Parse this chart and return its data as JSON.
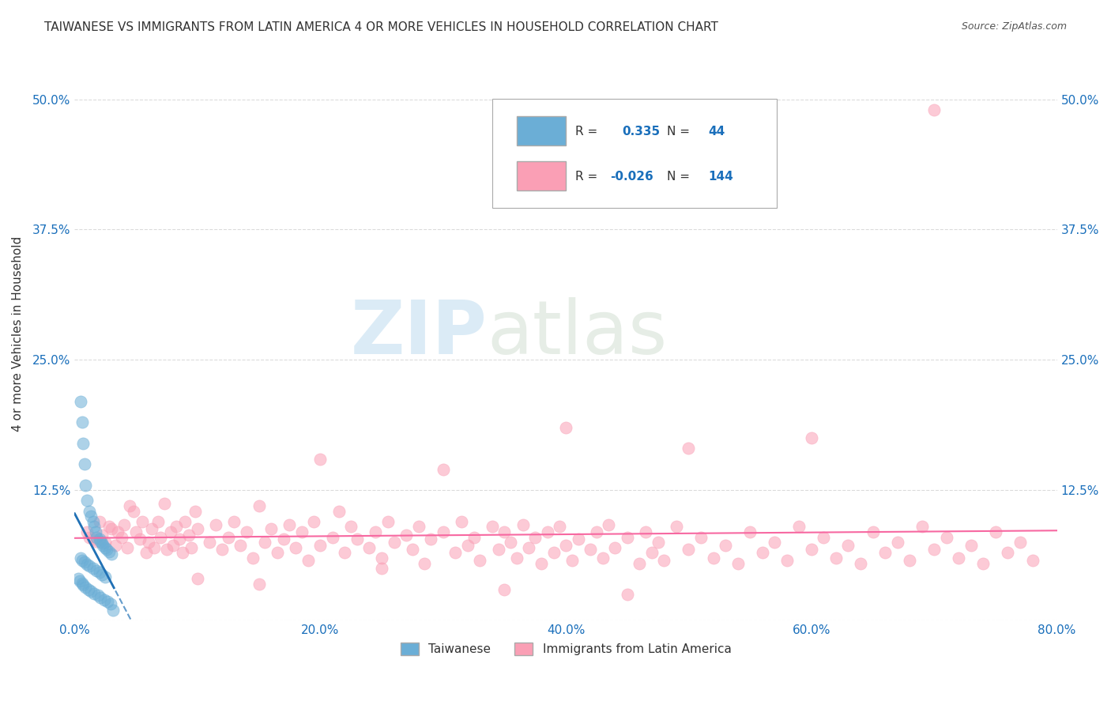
{
  "title": "TAIWANESE VS IMMIGRANTS FROM LATIN AMERICA 4 OR MORE VEHICLES IN HOUSEHOLD CORRELATION CHART",
  "source": "Source: ZipAtlas.com",
  "ylabel_label": "4 or more Vehicles in Household",
  "watermark_zip": "ZIP",
  "watermark_atlas": "atlas",
  "xlim": [
    0.0,
    0.8
  ],
  "ylim": [
    0.0,
    0.55
  ],
  "xticks": [
    0.0,
    0.2,
    0.4,
    0.6,
    0.8
  ],
  "yticks": [
    0.0,
    0.125,
    0.25,
    0.375,
    0.5
  ],
  "xticklabels": [
    "0.0%",
    "20.0%",
    "40.0%",
    "60.0%",
    "80.0%"
  ],
  "yticklabels": [
    "",
    "12.5%",
    "25.0%",
    "37.5%",
    "50.0%"
  ],
  "blue_R": 0.335,
  "blue_N": 44,
  "pink_R": -0.026,
  "pink_N": 144,
  "blue_color": "#6baed6",
  "pink_color": "#fa9fb5",
  "blue_line_color": "#2171b5",
  "pink_line_color": "#f768a1",
  "legend_label_blue": "Taiwanese",
  "legend_label_pink": "Immigrants from Latin America",
  "blue_x": [
    0.005,
    0.006,
    0.007,
    0.008,
    0.009,
    0.01,
    0.012,
    0.013,
    0.015,
    0.016,
    0.017,
    0.018,
    0.02,
    0.021,
    0.022,
    0.023,
    0.025,
    0.026,
    0.028,
    0.03,
    0.005,
    0.006,
    0.008,
    0.01,
    0.012,
    0.015,
    0.018,
    0.02,
    0.022,
    0.025,
    0.003,
    0.004,
    0.006,
    0.007,
    0.009,
    0.011,
    0.013,
    0.016,
    0.019,
    0.021,
    0.024,
    0.027,
    0.029,
    0.031
  ],
  "blue_y": [
    0.21,
    0.19,
    0.17,
    0.15,
    0.13,
    0.115,
    0.105,
    0.1,
    0.095,
    0.09,
    0.085,
    0.08,
    0.078,
    0.076,
    0.074,
    0.072,
    0.07,
    0.068,
    0.066,
    0.064,
    0.06,
    0.058,
    0.056,
    0.054,
    0.052,
    0.05,
    0.048,
    0.046,
    0.044,
    0.042,
    0.04,
    0.038,
    0.036,
    0.034,
    0.032,
    0.03,
    0.028,
    0.026,
    0.024,
    0.022,
    0.02,
    0.018,
    0.016,
    0.01
  ],
  "pink_x": [
    0.01,
    0.012,
    0.015,
    0.018,
    0.02,
    0.022,
    0.025,
    0.028,
    0.03,
    0.033,
    0.035,
    0.038,
    0.04,
    0.043,
    0.045,
    0.048,
    0.05,
    0.053,
    0.055,
    0.058,
    0.06,
    0.063,
    0.065,
    0.068,
    0.07,
    0.073,
    0.075,
    0.078,
    0.08,
    0.083,
    0.085,
    0.088,
    0.09,
    0.093,
    0.095,
    0.098,
    0.1,
    0.11,
    0.115,
    0.12,
    0.125,
    0.13,
    0.135,
    0.14,
    0.145,
    0.15,
    0.155,
    0.16,
    0.165,
    0.17,
    0.175,
    0.18,
    0.185,
    0.19,
    0.195,
    0.2,
    0.21,
    0.215,
    0.22,
    0.225,
    0.23,
    0.24,
    0.245,
    0.25,
    0.255,
    0.26,
    0.27,
    0.275,
    0.28,
    0.285,
    0.29,
    0.3,
    0.31,
    0.315,
    0.32,
    0.325,
    0.33,
    0.34,
    0.345,
    0.35,
    0.355,
    0.36,
    0.365,
    0.37,
    0.375,
    0.38,
    0.385,
    0.39,
    0.395,
    0.4,
    0.405,
    0.41,
    0.42,
    0.425,
    0.43,
    0.435,
    0.44,
    0.45,
    0.46,
    0.465,
    0.47,
    0.475,
    0.48,
    0.49,
    0.5,
    0.51,
    0.52,
    0.53,
    0.54,
    0.55,
    0.56,
    0.57,
    0.58,
    0.59,
    0.6,
    0.61,
    0.62,
    0.63,
    0.64,
    0.65,
    0.66,
    0.67,
    0.68,
    0.69,
    0.7,
    0.71,
    0.72,
    0.73,
    0.74,
    0.75,
    0.76,
    0.77,
    0.78,
    0.5,
    0.6,
    0.7,
    0.4,
    0.3,
    0.2,
    0.1,
    0.15,
    0.25,
    0.35,
    0.45
  ],
  "pink_y": [
    0.085,
    0.08,
    0.078,
    0.076,
    0.095,
    0.082,
    0.075,
    0.09,
    0.088,
    0.072,
    0.085,
    0.08,
    0.092,
    0.07,
    0.11,
    0.105,
    0.085,
    0.078,
    0.095,
    0.065,
    0.075,
    0.088,
    0.07,
    0.095,
    0.08,
    0.112,
    0.068,
    0.085,
    0.072,
    0.09,
    0.078,
    0.065,
    0.095,
    0.082,
    0.07,
    0.105,
    0.088,
    0.075,
    0.092,
    0.068,
    0.08,
    0.095,
    0.072,
    0.085,
    0.06,
    0.11,
    0.075,
    0.088,
    0.065,
    0.078,
    0.092,
    0.07,
    0.085,
    0.058,
    0.095,
    0.072,
    0.08,
    0.105,
    0.065,
    0.09,
    0.078,
    0.07,
    0.085,
    0.06,
    0.095,
    0.075,
    0.082,
    0.068,
    0.09,
    0.055,
    0.078,
    0.085,
    0.065,
    0.095,
    0.072,
    0.08,
    0.058,
    0.09,
    0.068,
    0.085,
    0.075,
    0.06,
    0.092,
    0.07,
    0.08,
    0.055,
    0.085,
    0.065,
    0.09,
    0.072,
    0.058,
    0.078,
    0.068,
    0.085,
    0.06,
    0.092,
    0.07,
    0.08,
    0.055,
    0.085,
    0.065,
    0.075,
    0.058,
    0.09,
    0.068,
    0.08,
    0.06,
    0.072,
    0.055,
    0.085,
    0.065,
    0.075,
    0.058,
    0.09,
    0.068,
    0.08,
    0.06,
    0.072,
    0.055,
    0.085,
    0.065,
    0.075,
    0.058,
    0.09,
    0.068,
    0.08,
    0.06,
    0.072,
    0.055,
    0.085,
    0.065,
    0.075,
    0.058,
    0.165,
    0.175,
    0.49,
    0.185,
    0.145,
    0.155,
    0.04,
    0.035,
    0.05,
    0.03,
    0.025
  ]
}
